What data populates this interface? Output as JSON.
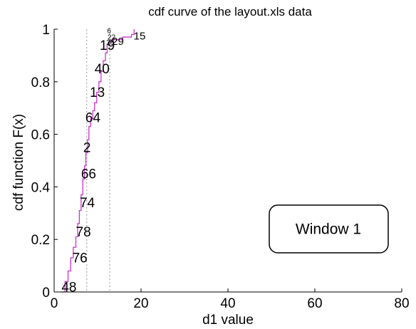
{
  "chart_data": {
    "type": "line",
    "title": "cdf curve of the layout.xls data",
    "xlabel": "d1 value",
    "ylabel": "cdf function F(x)",
    "xlim": [
      0,
      80
    ],
    "ylim": [
      0,
      1
    ],
    "xticks": [
      "0",
      "20",
      "40",
      "60",
      "80"
    ],
    "yticks": [
      "0",
      "0.2",
      "0.4",
      "0.6",
      "0.8",
      "1"
    ],
    "grid": false,
    "line_color": "#cc33cc",
    "cdf": {
      "x": [
        1.6,
        2.5,
        3.2,
        3.8,
        4.4,
        5.0,
        5.4,
        5.8,
        6.2,
        6.6,
        7.0,
        7.3,
        7.7,
        8.0,
        8.4,
        8.9,
        9.3,
        9.8,
        10.3,
        10.8,
        11.3,
        11.8,
        12.2,
        12.7,
        13.3,
        14.2,
        15.8,
        17.8,
        18.4
      ],
      "y": [
        0.0,
        0.04,
        0.08,
        0.13,
        0.17,
        0.21,
        0.26,
        0.31,
        0.37,
        0.43,
        0.48,
        0.53,
        0.58,
        0.63,
        0.66,
        0.69,
        0.72,
        0.76,
        0.8,
        0.84,
        0.88,
        0.91,
        0.94,
        0.95,
        0.96,
        0.96,
        0.97,
        0.98,
        1.0
      ]
    },
    "vlines": [
      7.5,
      12.8
    ],
    "point_labels": [
      {
        "text": "48",
        "x": 1.7,
        "y": 0.02,
        "size": "large"
      },
      {
        "text": "76",
        "x": 4.2,
        "y": 0.13,
        "size": "large"
      },
      {
        "text": "78",
        "x": 5.0,
        "y": 0.23,
        "size": "large"
      },
      {
        "text": "74",
        "x": 5.9,
        "y": 0.34,
        "size": "large"
      },
      {
        "text": "66",
        "x": 6.2,
        "y": 0.45,
        "size": "large"
      },
      {
        "text": "2",
        "x": 6.7,
        "y": 0.55,
        "size": "large"
      },
      {
        "text": "64",
        "x": 7.2,
        "y": 0.665,
        "size": "large"
      },
      {
        "text": "13",
        "x": 8.2,
        "y": 0.76,
        "size": "large"
      },
      {
        "text": "40",
        "x": 9.3,
        "y": 0.85,
        "size": "large"
      },
      {
        "text": "19",
        "x": 10.5,
        "y": 0.94,
        "size": "large"
      },
      {
        "text": "15",
        "x": 18.3,
        "y": 0.975,
        "size": "medium"
      },
      {
        "text": "29",
        "x": 13.3,
        "y": 0.955,
        "size": "medium"
      },
      {
        "text": "20",
        "x": 12.0,
        "y": 0.95,
        "size": "small"
      },
      {
        "text": "22",
        "x": 12.3,
        "y": 0.97,
        "size": "small"
      },
      {
        "text": "6",
        "x": 12.2,
        "y": 0.995,
        "size": "small"
      }
    ]
  },
  "annotation": {
    "text": "Window 1"
  }
}
